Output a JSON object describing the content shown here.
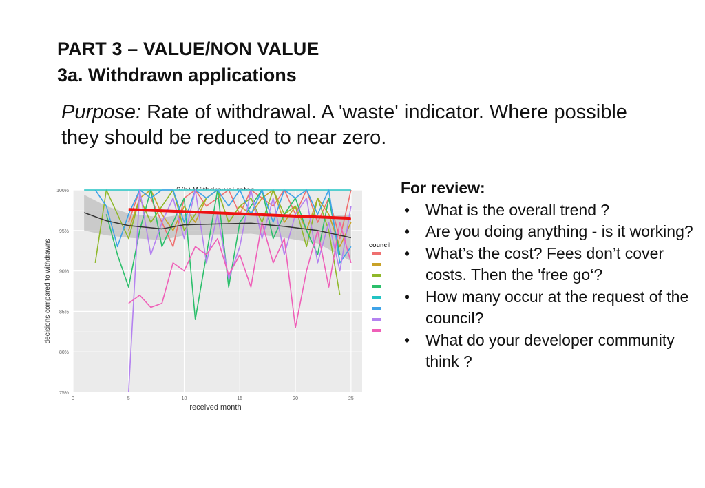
{
  "slide": {
    "title_line1": "PART 3 – VALUE/NON VALUE",
    "title_line2": "3a. Withdrawn applications",
    "purpose_label": "Purpose:",
    "purpose_text": " Rate of withdrawal. A 'waste' indicator. Where possible they should be reduced to near zero."
  },
  "review": {
    "heading": "For review:",
    "items": [
      "What is the overall trend ?",
      "Are you doing anything - is it working?",
      "What’s the cost? Fees don’t cover costs. Then the 'free go‘?",
      "How many occur at the request of the council?",
      "What do your developer community think ?"
    ]
  },
  "chart_data": {
    "type": "line",
    "title": "2(b) Withdrawal rates",
    "xlabel": "received month",
    "ylabel": "decisions compared to withdrawns",
    "xlim": [
      0,
      26
    ],
    "ylim": [
      75,
      100
    ],
    "xticks": [
      0,
      5,
      10,
      15,
      20,
      25
    ],
    "yticks": [
      75,
      80,
      85,
      90,
      95,
      100
    ],
    "ytick_labels": [
      "75%",
      "80%",
      "85%",
      "90%",
      "95%",
      "100%"
    ],
    "grid": true,
    "legend": {
      "title": "council",
      "placement": "right"
    },
    "series": [
      {
        "color": "#ef6f6f",
        "x": [
          5,
          6,
          7,
          8,
          9,
          10,
          11,
          12,
          13,
          14,
          15,
          16,
          17,
          18,
          19,
          20,
          21,
          22,
          23,
          24,
          25
        ],
        "y": [
          96,
          100,
          99,
          96,
          93,
          99,
          100,
          98,
          99,
          100,
          97,
          100,
          99,
          98,
          100,
          97,
          100,
          96,
          99,
          94,
          100
        ]
      },
      {
        "color": "#c9a227",
        "x": [
          5,
          6,
          7,
          8,
          9,
          10,
          11,
          12,
          13,
          14,
          15,
          16,
          17,
          18,
          19,
          20,
          21,
          22,
          23,
          24,
          25
        ],
        "y": [
          95,
          99,
          100,
          97,
          95,
          98,
          96,
          99,
          100,
          96,
          98,
          97,
          99,
          100,
          96,
          98,
          95,
          99,
          97,
          93,
          96
        ]
      },
      {
        "color": "#8fb82a",
        "x": [
          2,
          3,
          4,
          5,
          6,
          7,
          8,
          9,
          10,
          11,
          12,
          13,
          14,
          15,
          16,
          17,
          18,
          19,
          20,
          21,
          22,
          23,
          24
        ],
        "y": [
          91,
          100,
          97,
          94,
          99,
          96,
          98,
          100,
          95,
          97,
          99,
          100,
          96,
          98,
          99,
          96,
          100,
          97,
          98,
          93,
          99,
          95,
          87
        ]
      },
      {
        "color": "#2bbf6b",
        "x": [
          3,
          4,
          5,
          6,
          7,
          8,
          9,
          10,
          11,
          12,
          13,
          14,
          15,
          16,
          17,
          18,
          19,
          20,
          21,
          22,
          23,
          24
        ],
        "y": [
          97,
          92,
          88,
          95,
          100,
          93,
          96,
          99,
          84,
          92,
          100,
          88,
          96,
          98,
          100,
          94,
          97,
          99,
          95,
          92,
          99,
          92
        ]
      },
      {
        "color": "#22c3c3",
        "x": [
          1,
          25
        ],
        "y": [
          100,
          100
        ]
      },
      {
        "color": "#3ea3e8",
        "x": [
          2,
          3,
          4,
          5,
          6,
          7,
          8,
          9,
          10,
          11,
          12,
          13,
          14,
          15,
          16,
          17,
          18,
          19,
          20,
          21,
          22,
          23,
          24,
          25
        ],
        "y": [
          100,
          98,
          93,
          97,
          100,
          99,
          100,
          100,
          96,
          100,
          99,
          100,
          98,
          100,
          97,
          100,
          96,
          100,
          99,
          100,
          97,
          100,
          91,
          93
        ]
      },
      {
        "color": "#b482f0",
        "x": [
          5,
          6,
          7,
          8,
          9,
          10,
          11,
          12,
          13,
          14,
          15,
          16,
          17,
          18,
          19,
          20,
          21,
          22,
          23,
          24,
          25
        ],
        "y": [
          75,
          100,
          92,
          96,
          99,
          94,
          100,
          91,
          97,
          89,
          93,
          100,
          94,
          99,
          92,
          97,
          99,
          91,
          96,
          90,
          98
        ]
      },
      {
        "color": "#ef5fb8",
        "x": [
          5,
          6,
          7,
          8,
          9,
          10,
          11,
          12,
          13,
          14,
          15,
          16,
          17,
          18,
          19,
          20,
          21,
          22,
          23,
          24,
          25
        ],
        "y": [
          86,
          87,
          85.5,
          86,
          91,
          90,
          93,
          92,
          94,
          89.5,
          92,
          88,
          96,
          91,
          94,
          83,
          90,
          95,
          88,
          96,
          91
        ]
      }
    ],
    "trend_lines": [
      {
        "color": "#ee1111",
        "x": [
          5,
          25
        ],
        "y": [
          97.6,
          96.5
        ]
      },
      {
        "color": "#333333",
        "x": [
          1,
          3,
          5,
          8,
          10,
          13,
          16,
          19,
          22,
          25
        ],
        "y": [
          97.2,
          96.2,
          95.6,
          95.2,
          95.7,
          95.8,
          95.9,
          95.5,
          95.0,
          94.1
        ]
      }
    ],
    "confidence_band": {
      "color": "#bfbfbf",
      "x": [
        1,
        3,
        5,
        8,
        10,
        13,
        16,
        19,
        22,
        25
      ],
      "upper": [
        99.4,
        98.0,
        97.1,
        96.6,
        97.0,
        97.1,
        97.2,
        96.9,
        96.6,
        97.0
      ],
      "lower": [
        95.0,
        94.4,
        94.1,
        93.8,
        94.4,
        94.5,
        94.6,
        94.1,
        93.4,
        91.2
      ]
    }
  }
}
